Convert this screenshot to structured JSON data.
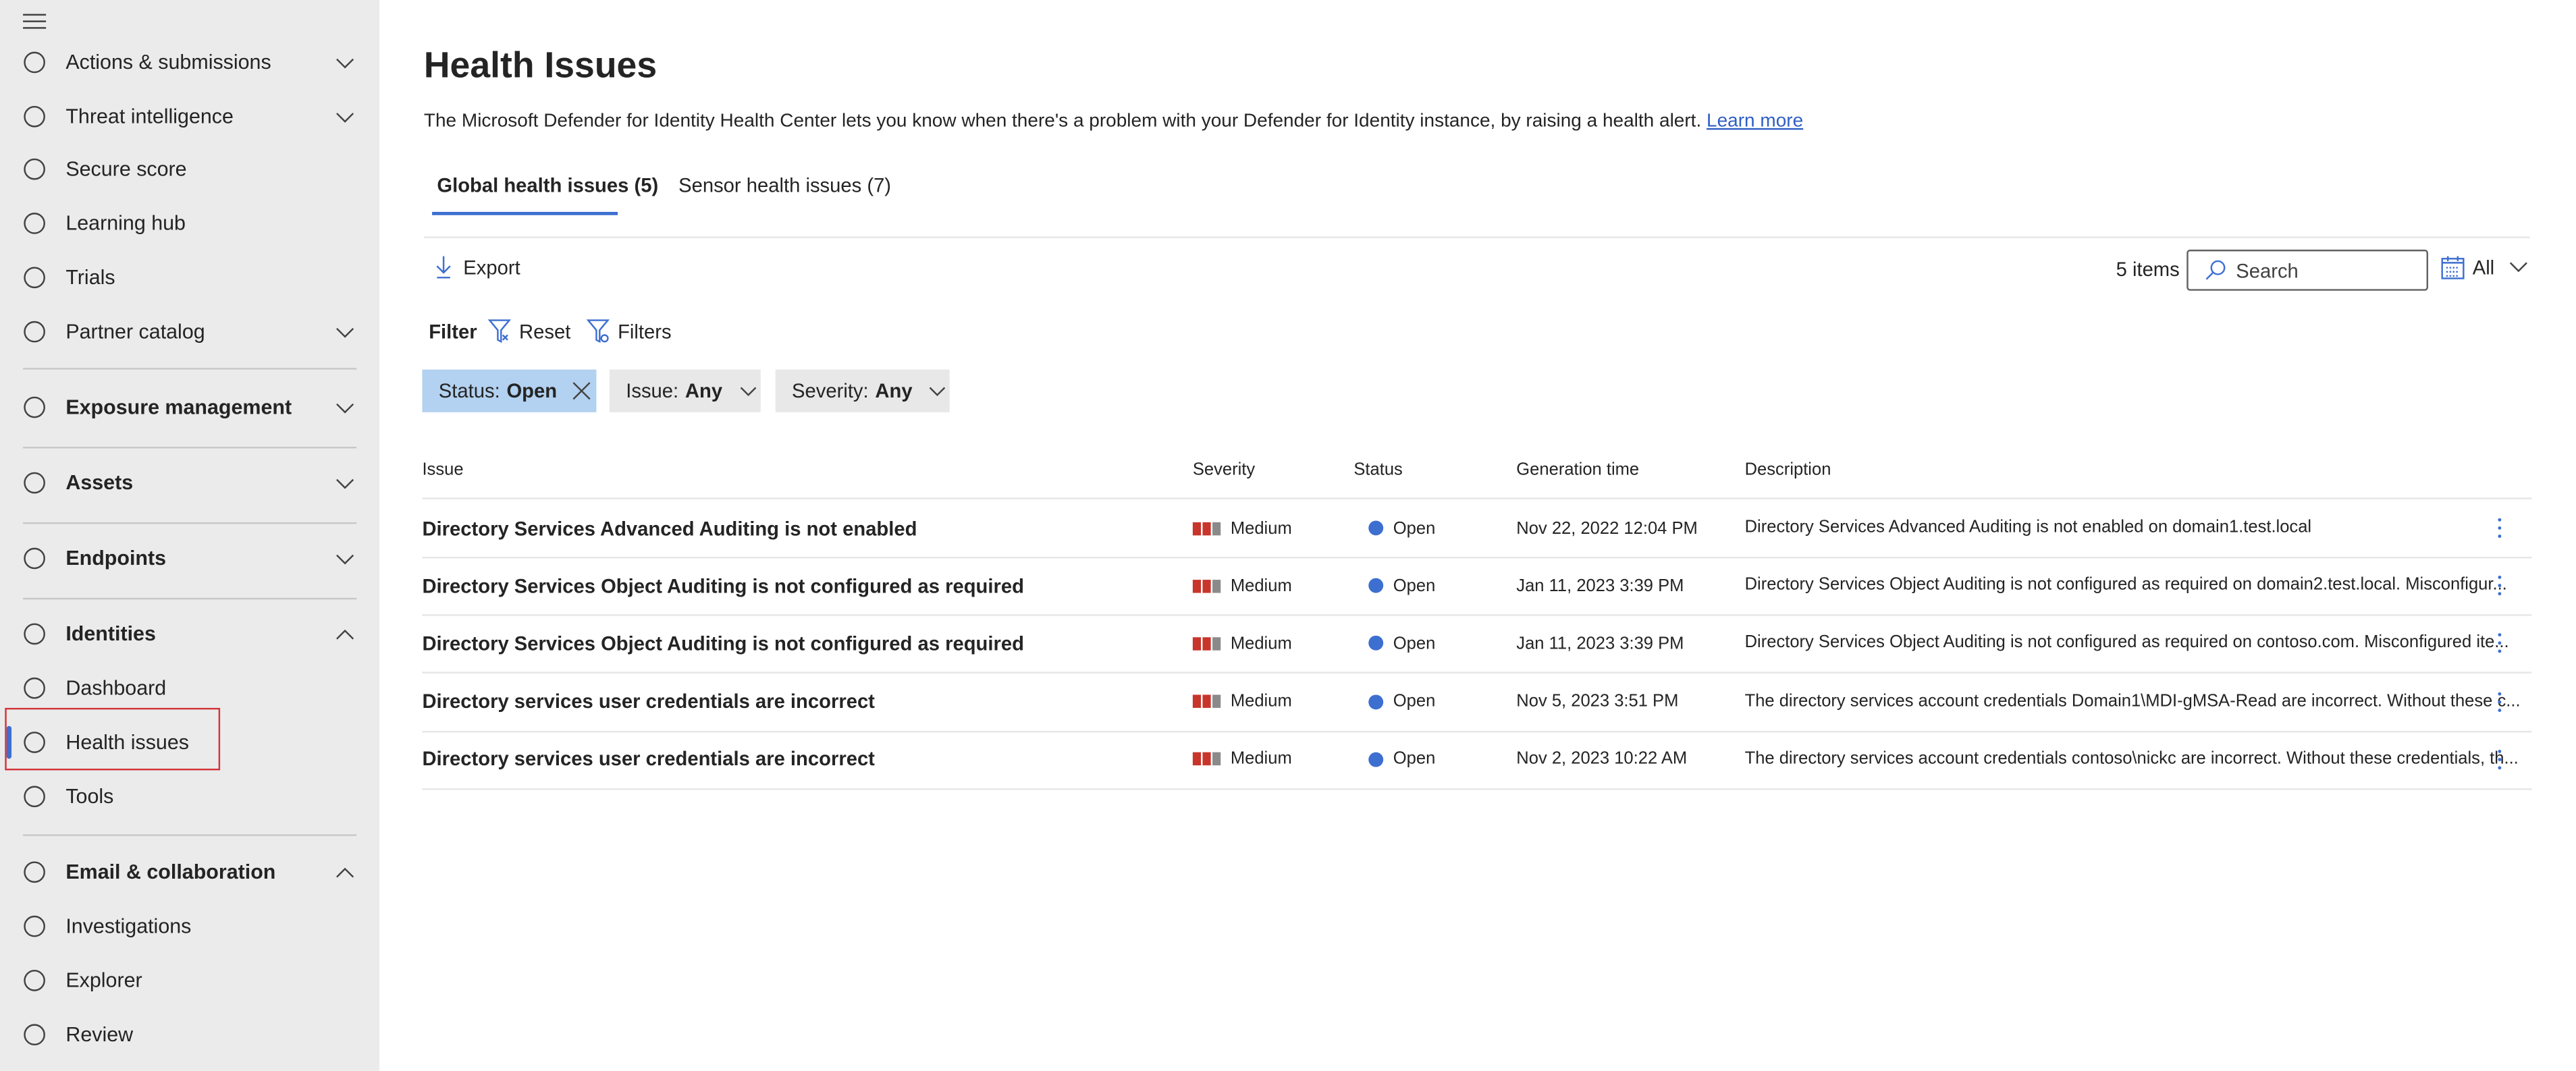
{
  "sidebar": {
    "items": [
      {
        "label": "Actions & submissions",
        "icon": "actions-submissions-icon",
        "chevron": "down"
      },
      {
        "label": "Threat intelligence",
        "icon": "threat-intelligence-icon",
        "chevron": "down"
      },
      {
        "label": "Secure score",
        "icon": "trophy-icon"
      },
      {
        "label": "Learning hub",
        "icon": "learning-hub-icon"
      },
      {
        "label": "Trials",
        "icon": "trials-icon"
      },
      {
        "label": "Partner catalog",
        "icon": "partner-catalog-icon",
        "chevron": "down"
      },
      {
        "label": "Exposure management",
        "icon": "exposure-management-icon",
        "chevron": "down"
      },
      {
        "label": "Assets",
        "icon": "assets-icon",
        "chevron": "down"
      },
      {
        "label": "Endpoints",
        "icon": "endpoints-icon",
        "chevron": "down"
      },
      {
        "label": "Identities",
        "icon": "identities-icon",
        "chevron": "up"
      },
      {
        "label": "Dashboard",
        "icon": "dashboard-icon"
      },
      {
        "label": "Health issues",
        "icon": "heart-pulse-icon",
        "selected": true
      },
      {
        "label": "Tools",
        "icon": "toolbox-icon"
      },
      {
        "label": "Email & collaboration",
        "icon": "mail-icon",
        "chevron": "up"
      },
      {
        "label": "Investigations",
        "icon": "investigations-icon"
      },
      {
        "label": "Explorer",
        "icon": "explorer-icon"
      },
      {
        "label": "Review",
        "icon": "review-icon"
      }
    ]
  },
  "page": {
    "title": "Health Issues",
    "description": "The Microsoft Defender for Identity Health Center lets you know when there's a problem with your Defender for Identity instance, by raising a health alert.",
    "learn_more": "Learn more"
  },
  "tabs": [
    {
      "label": "Global health issues (5)",
      "active": true
    },
    {
      "label": "Sensor health issues (7)"
    }
  ],
  "toolbar": {
    "export_label": "Export",
    "items_count": "5 items",
    "search_placeholder": "Search",
    "date_filter": "All"
  },
  "filter": {
    "label": "Filter",
    "reset_label": "Reset",
    "filters_label": "Filters",
    "chips": [
      {
        "key": "Status:",
        "value": "Open",
        "active": true
      },
      {
        "key": "Issue:",
        "value": "Any"
      },
      {
        "key": "Severity:",
        "value": "Any"
      }
    ]
  },
  "table": {
    "columns": [
      "Issue",
      "Severity",
      "Status",
      "Generation time",
      "Description"
    ],
    "rows": [
      {
        "issue": "Directory Services Advanced Auditing is not enabled",
        "severity": "Medium",
        "status": "Open",
        "time": "Nov 22, 2022 12:04 PM",
        "description": "Directory Services Advanced Auditing is not enabled on domain1.test.local"
      },
      {
        "issue": "Directory Services Object Auditing is not configured as required",
        "severity": "Medium",
        "status": "Open",
        "time": "Jan 11, 2023 3:39 PM",
        "description": "Directory Services Object Auditing is not configured as required on domain2.test.local. Misconfigur..."
      },
      {
        "issue": "Directory Services Object Auditing is not configured as required",
        "severity": "Medium",
        "status": "Open",
        "time": "Jan 11, 2023 3:39 PM",
        "description": "Directory Services Object Auditing is not configured as required on contoso.com. Misconfigured ite..."
      },
      {
        "issue": "Directory services user credentials are incorrect",
        "severity": "Medium",
        "status": "Open",
        "time": "Nov 5, 2023 3:51 PM",
        "description": "The directory services account credentials Domain1\\MDI-gMSA-Read are incorrect. Without these c..."
      },
      {
        "issue": "Directory services user credentials are incorrect",
        "severity": "Medium",
        "status": "Open",
        "time": "Nov 2, 2023 10:22 AM",
        "description": "The directory services account credentials contoso\\nickc are incorrect. Without these credentials, th..."
      }
    ]
  },
  "colors": {
    "accent": "#3d6fd1",
    "severity_medium": "#c8352b",
    "selection_outline": "#d13438",
    "active_chip": "#b3d1f0"
  }
}
